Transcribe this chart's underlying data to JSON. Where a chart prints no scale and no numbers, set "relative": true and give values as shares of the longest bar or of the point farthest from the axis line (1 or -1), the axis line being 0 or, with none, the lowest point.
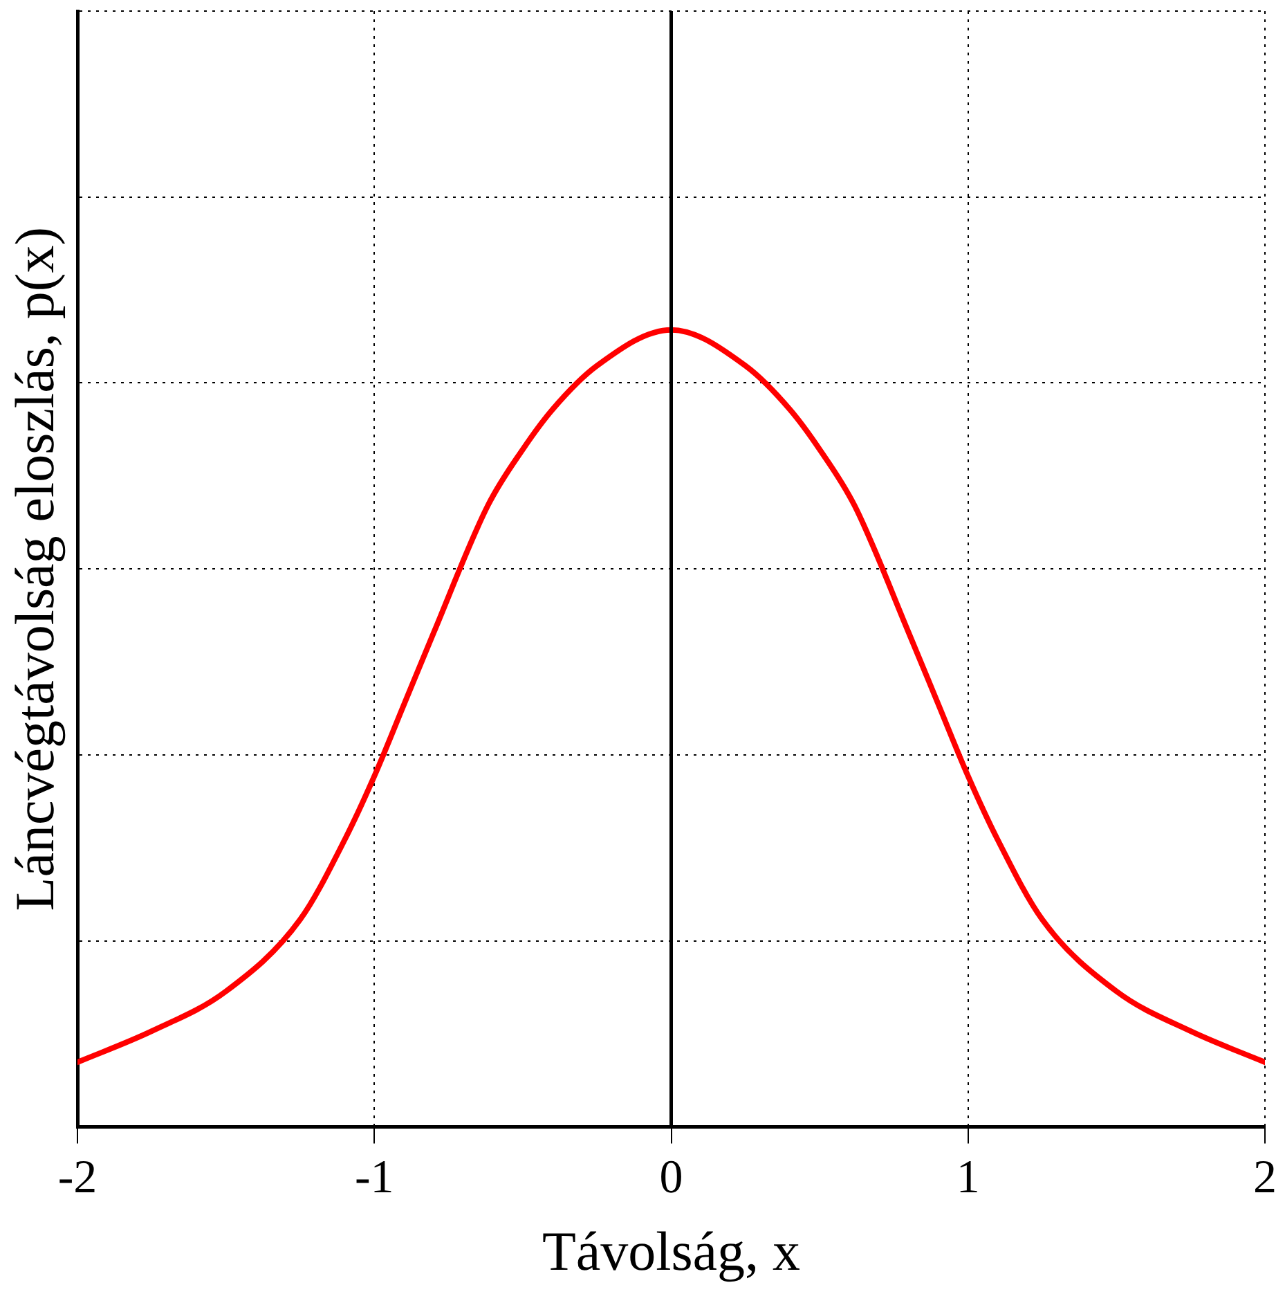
{
  "chart_data": {
    "type": "line",
    "xlabel": "Távolság, x",
    "ylabel": "Láncvégtávolság eloszlás, p(x)",
    "relative": true,
    "grid": true,
    "marker": "none",
    "line_style": "solid",
    "legend": false,
    "xlim": [
      -2,
      2
    ],
    "xticks": [
      -2,
      -1,
      0,
      1,
      2
    ],
    "ref_lines": [
      {
        "axis": "x",
        "value": 0,
        "color": "#000000"
      }
    ],
    "series": [
      {
        "color": "#ff0000",
        "x": [
          -2,
          -1.75,
          -1.5,
          -1.25,
          -1.1,
          -1,
          -0.9,
          -0.8,
          -0.617,
          -0.5,
          -0.4,
          -0.25,
          0,
          0.25,
          0.4,
          0.5,
          0.617,
          0.8,
          0.9,
          1,
          1.1,
          1.25,
          1.5,
          1.75,
          2
        ],
        "values": [
          0.081,
          0.12,
          0.17,
          0.26,
          0.36,
          0.44,
          0.53,
          0.62,
          0.78,
          0.85,
          0.9,
          0.955,
          1,
          0.955,
          0.9,
          0.85,
          0.78,
          0.62,
          0.53,
          0.44,
          0.36,
          0.26,
          0.17,
          0.12,
          0.081
        ]
      }
    ]
  }
}
